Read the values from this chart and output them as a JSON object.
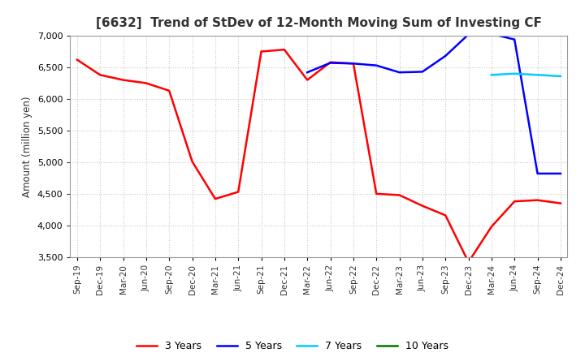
{
  "title": "[6632]  Trend of StDev of 12-Month Moving Sum of Investing CF",
  "ylabel": "Amount (million yen)",
  "ylim": [
    3500,
    7000
  ],
  "yticks": [
    3500,
    4000,
    4500,
    5000,
    5500,
    6000,
    6500,
    7000
  ],
  "x_labels": [
    "Sep-19",
    "Dec-19",
    "Mar-20",
    "Jun-20",
    "Sep-20",
    "Dec-20",
    "Mar-21",
    "Jun-21",
    "Sep-21",
    "Dec-21",
    "Mar-22",
    "Jun-22",
    "Sep-22",
    "Dec-22",
    "Mar-23",
    "Jun-23",
    "Sep-23",
    "Dec-23",
    "Mar-24",
    "Jun-24",
    "Sep-24",
    "Dec-24"
  ],
  "series": {
    "3 Years": {
      "color": "#ff0000",
      "values": [
        6620,
        6380,
        6300,
        6250,
        6130,
        5010,
        4420,
        4530,
        6750,
        6780,
        6300,
        6580,
        6560,
        4500,
        4480,
        4310,
        4160,
        3420,
        3980,
        4380,
        4400,
        4350
      ]
    },
    "5 Years": {
      "color": "#0000ff",
      "values": [
        null,
        null,
        null,
        null,
        null,
        null,
        null,
        null,
        null,
        null,
        6420,
        6570,
        6560,
        6530,
        6420,
        6430,
        6680,
        7020,
        7030,
        6940,
        4820,
        4820
      ]
    },
    "7 Years": {
      "color": "#00ccff",
      "values": [
        null,
        null,
        null,
        null,
        null,
        null,
        null,
        null,
        null,
        null,
        null,
        null,
        null,
        null,
        null,
        null,
        null,
        null,
        6380,
        6400,
        6380,
        6360
      ]
    },
    "10 Years": {
      "color": "#007700",
      "values": [
        null,
        null,
        null,
        null,
        null,
        null,
        null,
        null,
        null,
        null,
        null,
        null,
        null,
        null,
        null,
        null,
        null,
        null,
        null,
        null,
        null,
        null
      ]
    }
  },
  "legend_order": [
    "3 Years",
    "5 Years",
    "7 Years",
    "10 Years"
  ],
  "background_color": "#ffffff",
  "grid_color": "#c8c8c8"
}
